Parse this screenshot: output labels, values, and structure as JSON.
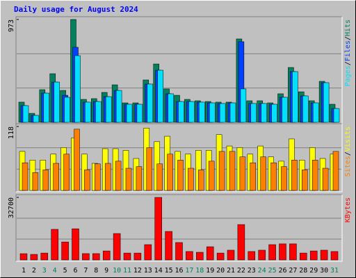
{
  "chart_data": [
    {
      "type": "bar",
      "title": "Daily usage for August 2024",
      "legend_separator": "/",
      "ylim": [
        0,
        973
      ],
      "yticks": [
        973
      ],
      "grid": true,
      "series": [
        {
          "name": "Hits",
          "color": "#00805c",
          "values": [
            191,
            85,
            309,
            460,
            302,
            973,
            217,
            224,
            283,
            355,
            184,
            184,
            401,
            552,
            316,
            256,
            217,
            204,
            197,
            191,
            191,
            789,
            204,
            204,
            184,
            270,
            519,
            289,
            204,
            388,
            171
          ]
        },
        {
          "name": "Files",
          "color": "#0040ff",
          "values": [
            158,
            66,
            276,
            381,
            256,
            710,
            191,
            197,
            243,
            302,
            171,
            171,
            362,
            493,
            270,
            197,
            197,
            191,
            184,
            178,
            184,
            763,
            178,
            178,
            171,
            237,
            480,
            250,
            184,
            375,
            131
          ]
        },
        {
          "name": "Pages",
          "color": "#00e0ff",
          "values": [
            158,
            66,
            276,
            381,
            237,
            631,
            191,
            197,
            243,
            302,
            171,
            171,
            362,
            493,
            270,
            197,
            197,
            191,
            184,
            178,
            184,
            316,
            178,
            178,
            171,
            237,
            480,
            250,
            184,
            375,
            131
          ]
        }
      ]
    },
    {
      "type": "bar",
      "legend_separator": "/",
      "ylim": [
        0,
        118
      ],
      "yticks": [
        118
      ],
      "grid": true,
      "series": [
        {
          "name": "Visits",
          "color": "#ffff00",
          "values": [
            72,
            56,
            56,
            67,
            79,
            97,
            67,
            50,
            77,
            77,
            74,
            59,
            115,
            90,
            100,
            72,
            67,
            74,
            74,
            103,
            82,
            79,
            67,
            82,
            62,
            54,
            95,
            56,
            79,
            59,
            67
          ]
        },
        {
          "name": "Sites",
          "color": "#ff8000",
          "values": [
            51,
            33,
            38,
            50,
            67,
            113,
            38,
            49,
            50,
            54,
            41,
            44,
            79,
            49,
            67,
            56,
            41,
            38,
            54,
            72,
            72,
            62,
            51,
            62,
            51,
            44,
            56,
            38,
            56,
            41,
            72
          ]
        }
      ]
    },
    {
      "type": "bar",
      "ylim": [
        0,
        32700
      ],
      "yticks": [
        32700
      ],
      "grid": true,
      "series": [
        {
          "name": "KBytes",
          "color": "#ff0000",
          "values": [
            3270,
            2900,
            3600,
            16000,
            9400,
            16300,
            3300,
            3300,
            4700,
            13800,
            3600,
            3600,
            8000,
            32700,
            14900,
            9100,
            4400,
            4000,
            6900,
            3600,
            5100,
            18500,
            4400,
            5100,
            8000,
            8400,
            8400,
            3600,
            4700,
            5100,
            4400
          ]
        }
      ],
      "categories": [
        "1",
        "2",
        "3",
        "4",
        "5",
        "6",
        "7",
        "8",
        "9",
        "10",
        "11",
        "12",
        "13",
        "14",
        "15",
        "16",
        "17",
        "18",
        "19",
        "20",
        "21",
        "22",
        "23",
        "24",
        "25",
        "26",
        "27",
        "28",
        "29",
        "30",
        "31"
      ],
      "category_colors": [
        "#000000",
        "#000000",
        "#00805c",
        "#00805c",
        "#000000",
        "#000000",
        "#000000",
        "#000000",
        "#000000",
        "#00805c",
        "#00805c",
        "#000000",
        "#000000",
        "#000000",
        "#000000",
        "#000000",
        "#00805c",
        "#00805c",
        "#000000",
        "#000000",
        "#000000",
        "#000000",
        "#000000",
        "#00805c",
        "#00805c",
        "#000000",
        "#000000",
        "#000000",
        "#000000",
        "#000000",
        "#00805c"
      ]
    }
  ]
}
